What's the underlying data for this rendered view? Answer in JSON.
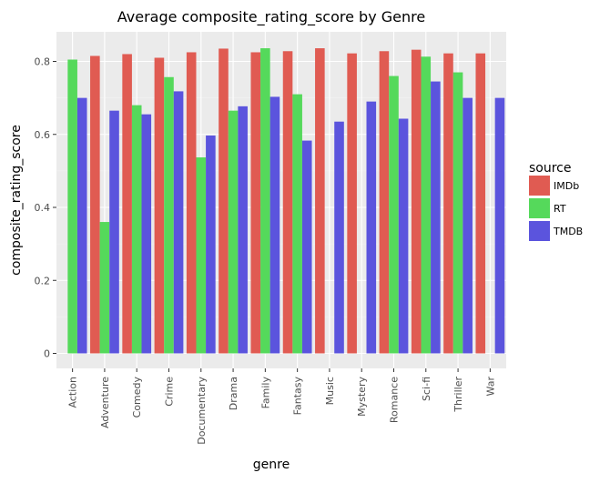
{
  "chart_data": {
    "type": "bar",
    "title": "Average composite_rating_score by Genre",
    "xlabel": "genre",
    "ylabel": "composite_rating_score",
    "ylim": [
      0,
      0.875
    ],
    "yticks": [
      0,
      0.2,
      0.4,
      0.6,
      0.8
    ],
    "ytick_labels": [
      "0",
      "0.2",
      "0.4",
      "0.6",
      "0.8"
    ],
    "grid": true,
    "legend_title": "source",
    "legend_position": "right",
    "categories": [
      "Action",
      "Adventure",
      "Comedy",
      "Crime",
      "Documentary",
      "Drama",
      "Family",
      "Fantasy",
      "Music",
      "Mystery",
      "Romance",
      "Sci-fi",
      "Thriller",
      "War"
    ],
    "series": [
      {
        "name": "IMDb",
        "color": "#e05b52",
        "values": [
          null,
          0.815,
          0.82,
          0.81,
          0.825,
          0.835,
          0.825,
          0.828,
          0.836,
          0.822,
          0.828,
          0.832,
          0.822,
          0.822
        ]
      },
      {
        "name": "RT",
        "color": "#55d95b",
        "values": [
          0.805,
          0.36,
          0.68,
          0.757,
          0.537,
          0.665,
          0.836,
          0.71,
          null,
          null,
          0.76,
          0.813,
          0.77,
          null
        ]
      },
      {
        "name": "TMDB",
        "color": "#5b54dd",
        "values": [
          0.7,
          0.665,
          0.655,
          0.718,
          0.597,
          0.677,
          0.703,
          0.583,
          0.635,
          0.69,
          0.643,
          0.745,
          0.7,
          0.7
        ]
      }
    ]
  }
}
